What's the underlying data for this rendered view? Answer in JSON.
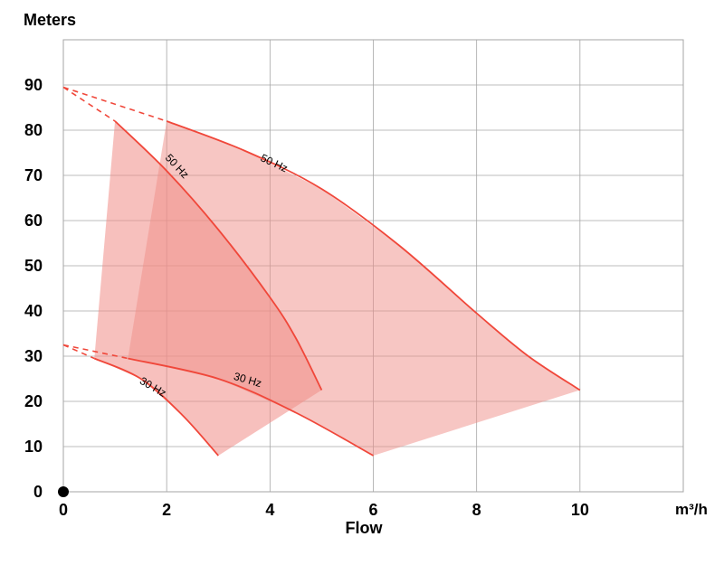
{
  "chart_data": {
    "type": "area",
    "ylabel": "Meters",
    "xlabel": "Flow",
    "xunit": "m³/h",
    "xlim": [
      0,
      12
    ],
    "ylim": [
      0,
      100
    ],
    "xticks": [
      0,
      2,
      4,
      6,
      8,
      10
    ],
    "yticks": [
      0,
      10,
      20,
      30,
      40,
      50,
      60,
      70,
      80,
      90
    ],
    "grid": true,
    "colors": {
      "curve": "#f0473a",
      "fill": "#f08d87",
      "grid": "#a6a6a6"
    },
    "series": [
      {
        "name": "50 Hz",
        "pump": 1,
        "points": [
          [
            1.0,
            82
          ],
          [
            2.0,
            71
          ],
          [
            3.0,
            58
          ],
          [
            4.0,
            43
          ],
          [
            4.5,
            34
          ],
          [
            5.0,
            22.5
          ]
        ],
        "extension": [
          [
            0,
            89.5
          ],
          [
            1.0,
            82
          ]
        ]
      },
      {
        "name": "30 Hz",
        "pump": 1,
        "points": [
          [
            0.6,
            29.5
          ],
          [
            1.5,
            25
          ],
          [
            2.3,
            17
          ],
          [
            3.0,
            8
          ]
        ],
        "extension": [
          [
            0,
            32.5
          ],
          [
            0.6,
            29.5
          ]
        ]
      },
      {
        "name": "50 Hz",
        "pump": 2,
        "points": [
          [
            2.0,
            82
          ],
          [
            3.5,
            75.5
          ],
          [
            5.0,
            67
          ],
          [
            6.5,
            54.5
          ],
          [
            8.0,
            39.5
          ],
          [
            9.0,
            30
          ],
          [
            10.0,
            22.5
          ]
        ],
        "extension": [
          [
            0,
            89.5
          ],
          [
            2.0,
            82
          ]
        ]
      },
      {
        "name": "30 Hz",
        "pump": 2,
        "points": [
          [
            1.25,
            29.5
          ],
          [
            3.0,
            25
          ],
          [
            4.5,
            17.5
          ],
          [
            6.0,
            8
          ]
        ],
        "extension": [
          [
            0,
            32.5
          ],
          [
            1.25,
            29.5
          ]
        ]
      }
    ],
    "regions": [
      {
        "pump": 1,
        "polygon": [
          [
            1.0,
            82
          ],
          [
            2.0,
            71
          ],
          [
            3.0,
            58
          ],
          [
            4.0,
            43
          ],
          [
            4.5,
            34
          ],
          [
            5.0,
            22.5
          ],
          [
            3.0,
            8
          ],
          [
            2.3,
            17
          ],
          [
            1.5,
            25
          ],
          [
            0.6,
            29.5
          ]
        ],
        "opacity": 0.55
      },
      {
        "pump": 2,
        "polygon": [
          [
            2.0,
            82
          ],
          [
            3.5,
            75.5
          ],
          [
            5.0,
            67
          ],
          [
            6.5,
            54.5
          ],
          [
            8.0,
            39.5
          ],
          [
            9.0,
            30
          ],
          [
            10.0,
            22.5
          ],
          [
            6.0,
            8
          ],
          [
            4.5,
            17.5
          ],
          [
            3.0,
            25
          ],
          [
            1.25,
            29.5
          ]
        ],
        "opacity": 0.5
      }
    ],
    "curve_labels": [
      {
        "text": "50 Hz",
        "x": 2.15,
        "y": 71.5,
        "angle": 47
      },
      {
        "text": "50 Hz",
        "x": 4.05,
        "y": 72,
        "angle": 25
      },
      {
        "text": "30 Hz",
        "x": 1.7,
        "y": 22.5,
        "angle": 30
      },
      {
        "text": "30 Hz",
        "x": 3.55,
        "y": 24,
        "angle": 16
      }
    ]
  }
}
